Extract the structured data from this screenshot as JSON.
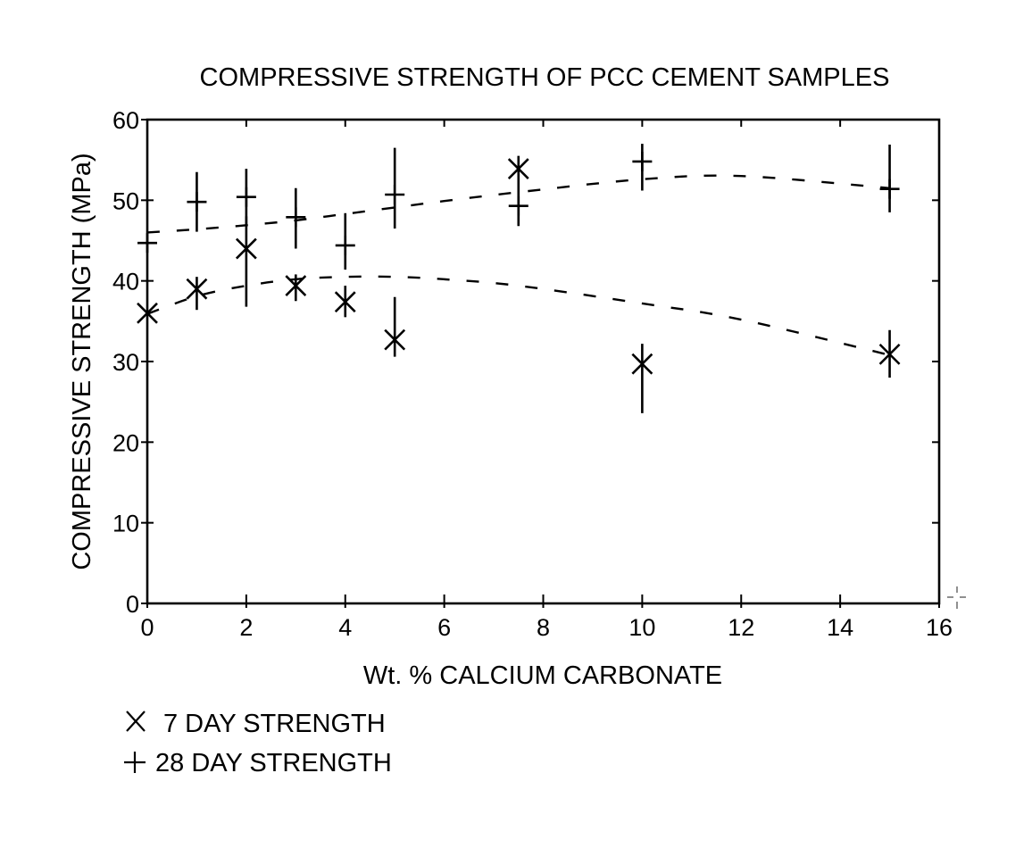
{
  "chart_data": {
    "type": "scatter",
    "title": "COMPRESSIVE STRENGTH OF PCC CEMENT SAMPLES",
    "xlabel": "Wt. % CALCIUM CARBONATE",
    "ylabel": "COMPRESSIVE STRENGTH (MPa)",
    "xlim": [
      0,
      16
    ],
    "ylim": [
      0,
      60
    ],
    "xticks": [
      0,
      2,
      4,
      6,
      8,
      10,
      12,
      14,
      16
    ],
    "yticks": [
      0,
      10,
      20,
      30,
      40,
      50,
      60
    ],
    "grid": false,
    "legend_position": "bottom-left",
    "series": [
      {
        "name": "7 DAY STRENGTH",
        "marker": "x",
        "x": [
          0,
          1,
          2,
          3,
          4,
          5,
          7.5,
          10,
          15
        ],
        "y": [
          36.0,
          39.0,
          44.0,
          39.4,
          37.4,
          32.7,
          53.9,
          29.7,
          30.9
        ],
        "err_low": [
          36.0,
          36.4,
          36.8,
          37.5,
          35.5,
          30.6,
          53.9,
          23.6,
          28.0
        ],
        "err_high": [
          36.0,
          40.5,
          48.0,
          40.8,
          39.4,
          38.0,
          53.9,
          32.2,
          33.9
        ],
        "fit": {
          "style": "dashed",
          "x": [
            0,
            1,
            2,
            3,
            4,
            5,
            6,
            7.5,
            10,
            12,
            15
          ],
          "y": [
            35.9,
            38.1,
            39.4,
            40.2,
            40.5,
            40.5,
            40.2,
            39.4,
            37.2,
            35.2,
            30.8
          ]
        }
      },
      {
        "name": "28 DAY STRENGTH",
        "marker": "+",
        "x": [
          0,
          1,
          2,
          3,
          4,
          5,
          7.5,
          10,
          15
        ],
        "y": [
          44.7,
          49.8,
          50.4,
          47.9,
          44.4,
          50.7,
          49.3,
          54.8,
          51.4
        ],
        "err_low": [
          44.7,
          46.1,
          47.0,
          44.0,
          41.4,
          46.5,
          46.8,
          51.2,
          48.5
        ],
        "err_high": [
          44.7,
          53.5,
          53.9,
          51.5,
          48.4,
          56.5,
          55.5,
          57.0,
          56.9
        ],
        "fit": {
          "style": "dashed",
          "x": [
            0,
            1,
            2,
            3,
            4,
            5,
            6,
            7.5,
            10,
            12,
            15
          ],
          "y": [
            46.0,
            46.4,
            46.9,
            47.5,
            48.3,
            49.1,
            49.9,
            51.0,
            52.6,
            53.0,
            51.5
          ]
        }
      }
    ]
  },
  "legend": {
    "items": [
      {
        "symbol": "×",
        "label": "7 DAY STRENGTH"
      },
      {
        "symbol": "+",
        "label": "28 DAY STRENGTH"
      }
    ]
  }
}
